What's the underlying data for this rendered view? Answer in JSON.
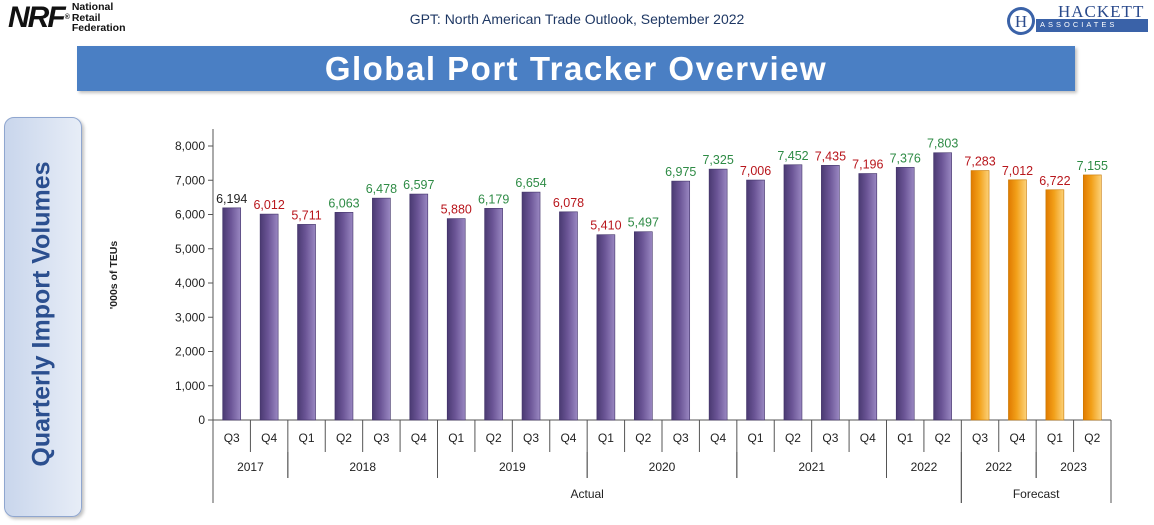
{
  "header": {
    "nrf_logo": {
      "mark": "NRF",
      "reg": "®",
      "lines": [
        "National",
        "Retail",
        "Federation"
      ]
    },
    "title": "GPT: North American Trade Outlook, September 2022",
    "hackett_logo": {
      "letter": "H",
      "name": "HACKETT",
      "sub": "ASSOCIATES"
    }
  },
  "banner": {
    "title": "Global Port Tracker Overview"
  },
  "side_panel": {
    "label": "Quarterly Import Volumes"
  },
  "colors": {
    "actual_bar": "#6b5596",
    "forecast_bar": "#f2a019",
    "label_green": "#2e8b45",
    "label_red": "#b8161c",
    "label_black": "#222222"
  },
  "chart_data": {
    "type": "bar",
    "ylabel": "'000s of TEUs",
    "ylim": [
      0,
      8000
    ],
    "yticks": [
      "0",
      "1,000",
      "2,000",
      "3,000",
      "4,000",
      "5,000",
      "6,000",
      "7,000",
      "8,000"
    ],
    "grid": false,
    "categories": [
      "Q3",
      "Q4",
      "Q1",
      "Q2",
      "Q3",
      "Q4",
      "Q1",
      "Q2",
      "Q3",
      "Q4",
      "Q1",
      "Q2",
      "Q3",
      "Q4",
      "Q1",
      "Q2",
      "Q3",
      "Q4",
      "Q1",
      "Q2",
      "Q3",
      "Q4",
      "Q1",
      "Q2"
    ],
    "values": [
      6194,
      6012,
      5711,
      6063,
      6478,
      6597,
      5880,
      6179,
      6654,
      6078,
      5410,
      5497,
      6975,
      7325,
      7006,
      7452,
      7435,
      7196,
      7376,
      7803,
      7283,
      7012,
      6722,
      7155
    ],
    "labels": [
      "6,194",
      "6,012",
      "5,711",
      "6,063",
      "6,478",
      "6,597",
      "5,880",
      "6,179",
      "6,654",
      "6,078",
      "5,410",
      "5,497",
      "6,975",
      "7,325",
      "7,006",
      "7,452",
      "7,435",
      "7,196",
      "7,376",
      "7,803",
      "7,283",
      "7,012",
      "6,722",
      "7,155"
    ],
    "label_color": [
      "black",
      "red",
      "red",
      "green",
      "green",
      "green",
      "red",
      "green",
      "green",
      "red",
      "red",
      "green",
      "green",
      "green",
      "red",
      "green",
      "red",
      "red",
      "green",
      "green",
      "red",
      "red",
      "red",
      "green"
    ],
    "forecast": [
      false,
      false,
      false,
      false,
      false,
      false,
      false,
      false,
      false,
      false,
      false,
      false,
      false,
      false,
      false,
      false,
      false,
      false,
      false,
      false,
      true,
      true,
      true,
      true
    ],
    "years": [
      {
        "label": "2017",
        "start": 0,
        "count": 2
      },
      {
        "label": "2018",
        "start": 2,
        "count": 4
      },
      {
        "label": "2019",
        "start": 6,
        "count": 4
      },
      {
        "label": "2020",
        "start": 10,
        "count": 4
      },
      {
        "label": "2021",
        "start": 14,
        "count": 4
      },
      {
        "label": "2022",
        "start": 18,
        "count": 2
      },
      {
        "label": "2022",
        "start": 20,
        "count": 2
      },
      {
        "label": "2023",
        "start": 22,
        "count": 2
      }
    ],
    "groups": [
      {
        "label": "Actual",
        "start": 0,
        "count": 20
      },
      {
        "label": "Forecast",
        "start": 20,
        "count": 4
      }
    ]
  }
}
